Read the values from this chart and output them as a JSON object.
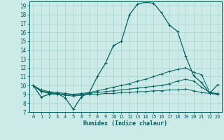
{
  "xlabel": "Humidex (Indice chaleur)",
  "xlim": [
    -0.5,
    23.5
  ],
  "ylim": [
    7,
    19.5
  ],
  "yticks": [
    7,
    8,
    9,
    10,
    11,
    12,
    13,
    14,
    15,
    16,
    17,
    18,
    19
  ],
  "xticks": [
    0,
    1,
    2,
    3,
    4,
    5,
    6,
    7,
    8,
    9,
    10,
    11,
    12,
    13,
    14,
    15,
    16,
    17,
    18,
    19,
    20,
    21,
    22,
    23
  ],
  "bg_color": "#cceae7",
  "grid_color": "#aad4d0",
  "line_color": "#006060",
  "line1_x": [
    0,
    1,
    2,
    3,
    4,
    5,
    6,
    7,
    8,
    9,
    10,
    11,
    12,
    13,
    14,
    15,
    16,
    17,
    18,
    19,
    20,
    21,
    22,
    23
  ],
  "line1_y": [
    10.0,
    8.7,
    9.0,
    9.1,
    8.6,
    7.3,
    8.7,
    9.2,
    11.0,
    12.5,
    14.5,
    15.0,
    18.0,
    19.2,
    19.4,
    19.3,
    18.2,
    16.8,
    16.1,
    13.3,
    11.1,
    10.3,
    9.1,
    10.1
  ],
  "line2_x": [
    0,
    1,
    2,
    3,
    4,
    5,
    6,
    7,
    8,
    9,
    10,
    11,
    12,
    13,
    14,
    15,
    16,
    17,
    18,
    19,
    20,
    21,
    22,
    23
  ],
  "line2_y": [
    10.0,
    9.5,
    9.3,
    9.2,
    9.1,
    9.0,
    9.1,
    9.2,
    9.4,
    9.6,
    9.8,
    10.0,
    10.2,
    10.5,
    10.7,
    11.0,
    11.3,
    11.6,
    11.8,
    12.0,
    11.5,
    11.2,
    9.2,
    9.0
  ],
  "line3_x": [
    0,
    1,
    2,
    3,
    4,
    5,
    6,
    7,
    8,
    9,
    10,
    11,
    12,
    13,
    14,
    15,
    16,
    17,
    18,
    19,
    20,
    21,
    22,
    23
  ],
  "line3_y": [
    10.0,
    9.4,
    9.2,
    9.1,
    9.0,
    8.9,
    9.0,
    9.1,
    9.2,
    9.3,
    9.4,
    9.5,
    9.6,
    9.7,
    9.8,
    9.9,
    10.0,
    10.2,
    10.5,
    10.7,
    10.5,
    9.8,
    9.2,
    9.1
  ],
  "line4_x": [
    0,
    1,
    2,
    3,
    4,
    5,
    6,
    7,
    8,
    9,
    10,
    11,
    12,
    13,
    14,
    15,
    16,
    17,
    18,
    19,
    20,
    21,
    22,
    23
  ],
  "line4_y": [
    10.0,
    9.3,
    9.1,
    9.0,
    8.9,
    8.8,
    8.9,
    9.0,
    9.0,
    9.1,
    9.1,
    9.2,
    9.2,
    9.3,
    9.3,
    9.4,
    9.4,
    9.5,
    9.5,
    9.6,
    9.4,
    9.2,
    9.1,
    9.0
  ]
}
